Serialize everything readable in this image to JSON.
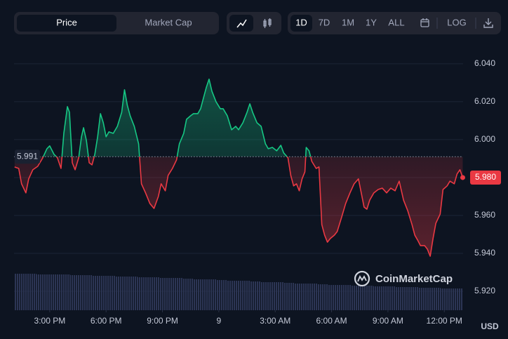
{
  "controls": {
    "tabs": [
      "Price",
      "Market Cap"
    ],
    "ranges": [
      "1D",
      "7D",
      "1M",
      "1Y",
      "ALL"
    ],
    "log": "LOG"
  },
  "chart_data": {
    "type": "line",
    "currency": "USD",
    "watermark": "CoinMarketCap",
    "colors": {
      "up": "#16c784",
      "down": "#ea3943"
    },
    "reference": 5.991,
    "last_price": {
      "value": 5.98,
      "label": "5.980"
    },
    "xlim": [
      13.1,
      37
    ],
    "xticks": [
      {
        "value": 15,
        "label": "3:00 PM"
      },
      {
        "value": 18,
        "label": "6:00 PM"
      },
      {
        "value": 21,
        "label": "9:00 PM"
      },
      {
        "value": 24,
        "label": "9"
      },
      {
        "value": 27,
        "label": "3:00 AM"
      },
      {
        "value": 30,
        "label": "6:00 AM"
      },
      {
        "value": 33,
        "label": "9:00 AM"
      },
      {
        "value": 36,
        "label": "12:00 PM"
      }
    ],
    "ylim": [
      5.91,
      6.047
    ],
    "yticks": [
      {
        "value": 5.92,
        "label": "5.920"
      },
      {
        "value": 5.94,
        "label": "5.940"
      },
      {
        "value": 5.96,
        "label": "5.960"
      },
      {
        "value": 5.98,
        "label": "5.980"
      },
      {
        "value": 6.0,
        "label": "6.000"
      },
      {
        "value": 6.02,
        "label": "6.020"
      },
      {
        "value": 6.04,
        "label": "6.040"
      }
    ],
    "grid": true,
    "x": [
      13.13,
      13.35,
      13.5,
      13.73,
      13.88,
      14.1,
      14.36,
      14.63,
      14.85,
      15,
      15.23,
      15.41,
      15.6,
      15.75,
      15.94,
      16.05,
      16.2,
      16.35,
      16.54,
      16.69,
      16.8,
      16.95,
      17.1,
      17.25,
      17.4,
      17.55,
      17.7,
      17.85,
      18,
      18.15,
      18.38,
      18.6,
      18.83,
      18.98,
      19.13,
      19.28,
      19.5,
      19.73,
      19.88,
      20.1,
      20.33,
      20.55,
      20.78,
      20.93,
      21.15,
      21.3,
      21.53,
      21.75,
      21.9,
      22.13,
      22.28,
      22.5,
      22.65,
      22.88,
      23.03,
      23.18,
      23.33,
      23.48,
      23.63,
      23.85,
      24.08,
      24.23,
      24.45,
      24.68,
      24.9,
      25.05,
      25.28,
      25.5,
      25.65,
      25.8,
      26.03,
      26.25,
      26.48,
      26.63,
      26.85,
      27.08,
      27.3,
      27.45,
      27.68,
      27.83,
      27.98,
      28.13,
      28.28,
      28.43,
      28.58,
      28.65,
      28.8,
      28.95,
      29.18,
      29.33,
      29.48,
      29.63,
      29.78,
      29.93,
      30.15,
      30.3,
      30.53,
      30.75,
      30.98,
      31.2,
      31.43,
      31.58,
      31.73,
      31.88,
      32.03,
      32.25,
      32.48,
      32.7,
      32.93,
      33.15,
      33.38,
      33.6,
      33.83,
      34.05,
      34.28,
      34.43,
      34.58,
      34.73,
      34.95,
      35.1,
      35.25,
      35.4,
      35.55,
      35.78,
      35.93,
      36.15,
      36.3,
      36.53,
      36.68,
      36.83,
      36.98
    ],
    "values": [
      5.9856,
      5.9848,
      5.9767,
      5.9719,
      5.9793,
      5.9841,
      5.9859,
      5.9904,
      5.9952,
      5.9967,
      5.9922,
      5.9904,
      5.9848,
      6.0033,
      6.0174,
      6.0144,
      5.9878,
      5.9841,
      5.9904,
      6.0015,
      6.0063,
      5.9996,
      5.9878,
      5.9867,
      5.9922,
      6.0015,
      6.0137,
      6.0089,
      6.0015,
      6.0041,
      6.0033,
      6.007,
      6.0144,
      6.0263,
      6.0181,
      6.0126,
      6.007,
      5.9978,
      5.9767,
      5.9719,
      5.9663,
      5.9637,
      5.97,
      5.9767,
      5.973,
      5.9811,
      5.9848,
      5.9893,
      5.9978,
      6.0033,
      6.0107,
      6.0126,
      6.0137,
      6.0137,
      6.0163,
      6.0219,
      6.0274,
      6.0319,
      6.0256,
      6.02,
      6.0163,
      6.0163,
      6.0126,
      6.0052,
      6.007,
      6.0052,
      6.0089,
      6.0144,
      6.0189,
      6.0144,
      6.0089,
      6.007,
      5.9978,
      5.9952,
      5.9959,
      5.9941,
      5.997,
      5.993,
      5.9904,
      5.9811,
      5.9756,
      5.9767,
      5.973,
      5.9793,
      5.983,
      5.9959,
      5.9941,
      5.9885,
      5.9848,
      5.9856,
      5.9552,
      5.9496,
      5.9459,
      5.9478,
      5.9496,
      5.9515,
      5.9589,
      5.9663,
      5.9719,
      5.9767,
      5.9793,
      5.9719,
      5.9644,
      5.9633,
      5.9681,
      5.9719,
      5.9737,
      5.9744,
      5.9719,
      5.9744,
      5.973,
      5.9781,
      5.9681,
      5.9626,
      5.9552,
      5.9496,
      5.947,
      5.9441,
      5.9441,
      5.9422,
      5.9385,
      5.9478,
      5.9559,
      5.9607,
      5.9737,
      5.9756,
      5.9781,
      5.9767,
      5.9819,
      5.9841,
      5.98
    ],
    "volume": {
      "lim": [
        0,
        370
      ],
      "values": [
        52,
        52,
        51,
        51,
        51,
        50,
        50,
        49,
        49,
        48,
        48,
        47,
        47,
        46,
        46,
        45,
        44,
        44,
        43,
        42,
        42,
        41,
        40,
        40,
        39,
        38,
        38,
        37,
        36,
        36,
        35,
        35,
        34,
        34,
        33,
        33,
        32,
        32,
        31,
        31
      ]
    }
  }
}
